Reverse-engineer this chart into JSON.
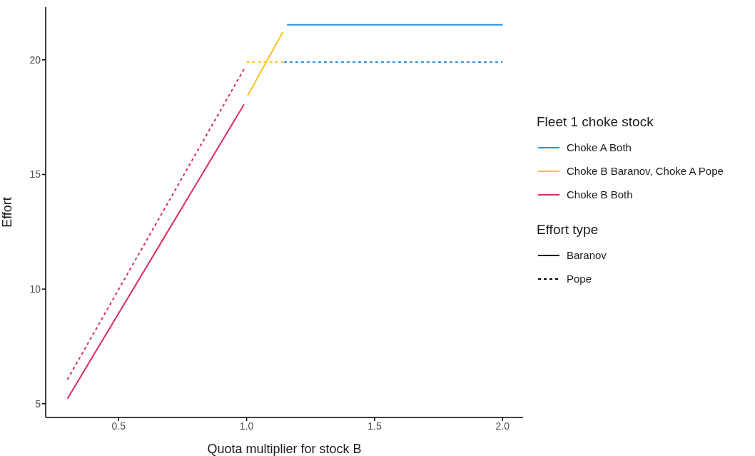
{
  "chart_data": {
    "type": "line",
    "xlabel": "Quota multiplier for stock B",
    "ylabel": "Effort",
    "legend_title": [
      "Fleet 1 choke stock",
      "Effort type"
    ],
    "annotations": [
      "Baranov",
      "Pope"
    ],
    "xlim": [
      0.215,
      2.08
    ],
    "ylim": [
      4.4,
      22.3
    ],
    "xticks": [
      0.5,
      {
        "value": 1,
        "label": "1.0"
      },
      1.5,
      {
        "value": 2,
        "label": "2.0"
      }
    ],
    "yticks": [
      5,
      10,
      15,
      20
    ],
    "grid": false,
    "legend": "right",
    "marker": "none",
    "series": [
      {
        "name": "Choke A Both",
        "color": "#2f8fe3",
        "line_style": "solid",
        "x": [
          1.158,
          2.0
        ],
        "values": [
          21.53,
          21.53
        ]
      },
      {
        "color": "#2f8fe3",
        "line_style": "dashed",
        "x": [
          1.146,
          2.0
        ],
        "values": [
          19.9,
          19.9
        ]
      },
      {
        "name": "Choke B Baranov, Choke A Pope",
        "color": "#fdc220",
        "line_style": "solid",
        "x": [
          1.004,
          1.141
        ],
        "values": [
          18.44,
          21.2
        ]
      },
      {
        "color": "#fdc220",
        "line_style": "dashed",
        "x": [
          1.0,
          1.146
        ],
        "values": [
          19.9,
          19.9
        ]
      },
      {
        "name": "Choke B Both",
        "color": "#dc2a5c",
        "line_style": "solid",
        "x": [
          0.3,
          0.99
        ],
        "values": [
          5.22,
          18.06
        ]
      },
      {
        "color": "#dc2a5c",
        "line_style": "dashed",
        "x": [
          0.3,
          0.99
        ],
        "values": [
          6.06,
          19.6
        ]
      }
    ]
  }
}
